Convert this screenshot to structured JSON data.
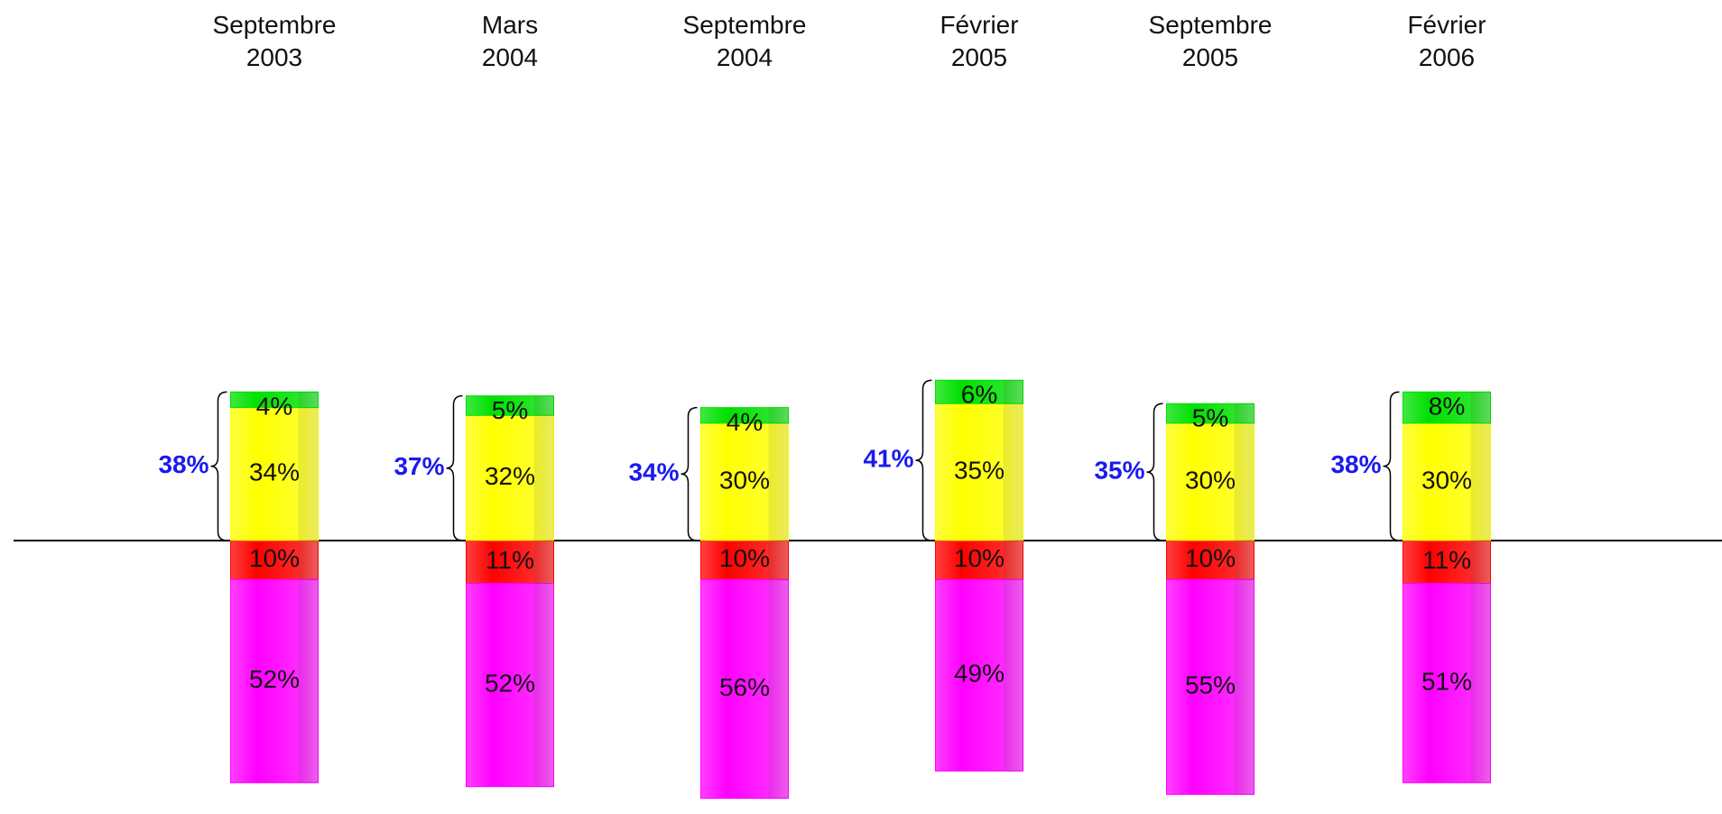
{
  "chart_data": {
    "type": "diverging_stacked_bar",
    "categories": [
      "Septembre\n2003",
      "Mars\n2004",
      "Septembre\n2004",
      "Février\n2005",
      "Septembre\n2005",
      "Février\n2006"
    ],
    "series": [
      {
        "color": "#ff0000",
        "values": [
          -10,
          -11,
          -10,
          -10,
          -10,
          -11
        ],
        "value_labels": [
          "10%",
          "11%",
          "10%",
          "10%",
          "10%",
          "11%"
        ]
      },
      {
        "color": "#ff00ff",
        "values": [
          -52,
          -52,
          -56,
          -49,
          -55,
          -51
        ],
        "value_labels": [
          "52%",
          "52%",
          "56%",
          "49%",
          "55%",
          "51%"
        ]
      },
      {
        "color": "#ffff00",
        "values": [
          34,
          32,
          30,
          35,
          30,
          30
        ],
        "value_labels": [
          "34%",
          "32%",
          "30%",
          "35%",
          "30%",
          "30%"
        ]
      },
      {
        "color": "#00e000",
        "values": [
          4,
          5,
          4,
          6,
          5,
          8
        ],
        "value_labels": [
          "4%",
          "5%",
          "4%",
          "6%",
          "5%",
          "8%"
        ]
      }
    ],
    "totals": {
      "color": "#1a1aee",
      "values": [
        38,
        37,
        34,
        41,
        35,
        38
      ],
      "value_labels": [
        "38%",
        "37%",
        "34%",
        "41%",
        "35%",
        "38%"
      ]
    },
    "ylim": [
      -70,
      45
    ]
  }
}
